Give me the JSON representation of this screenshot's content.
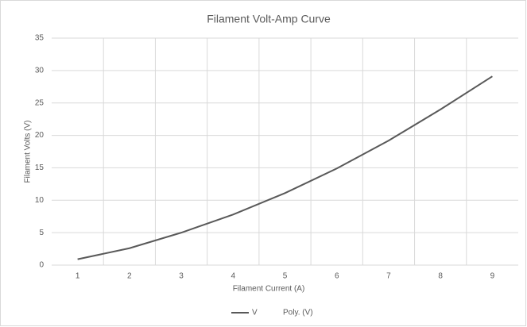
{
  "chart_data": {
    "type": "line",
    "title": "Filament Volt-Amp Curve",
    "x_label": "Filament Current (A)",
    "y_label": "Filament Volts (V)",
    "categories": [
      "1",
      "2",
      "3",
      "4",
      "5",
      "6",
      "7",
      "8",
      "9"
    ],
    "series": [
      {
        "name": "V",
        "color": "#595959",
        "values": [
          0.9,
          2.6,
          5.0,
          7.8,
          11.1,
          14.9,
          19.2,
          24.0,
          29.1
        ]
      }
    ],
    "trendline": {
      "name": "Poly. (V)"
    },
    "ylim": [
      0,
      35
    ],
    "yticks": [
      0,
      5,
      10,
      15,
      20,
      25,
      30,
      35
    ],
    "grid": true,
    "legend": "bottom"
  }
}
